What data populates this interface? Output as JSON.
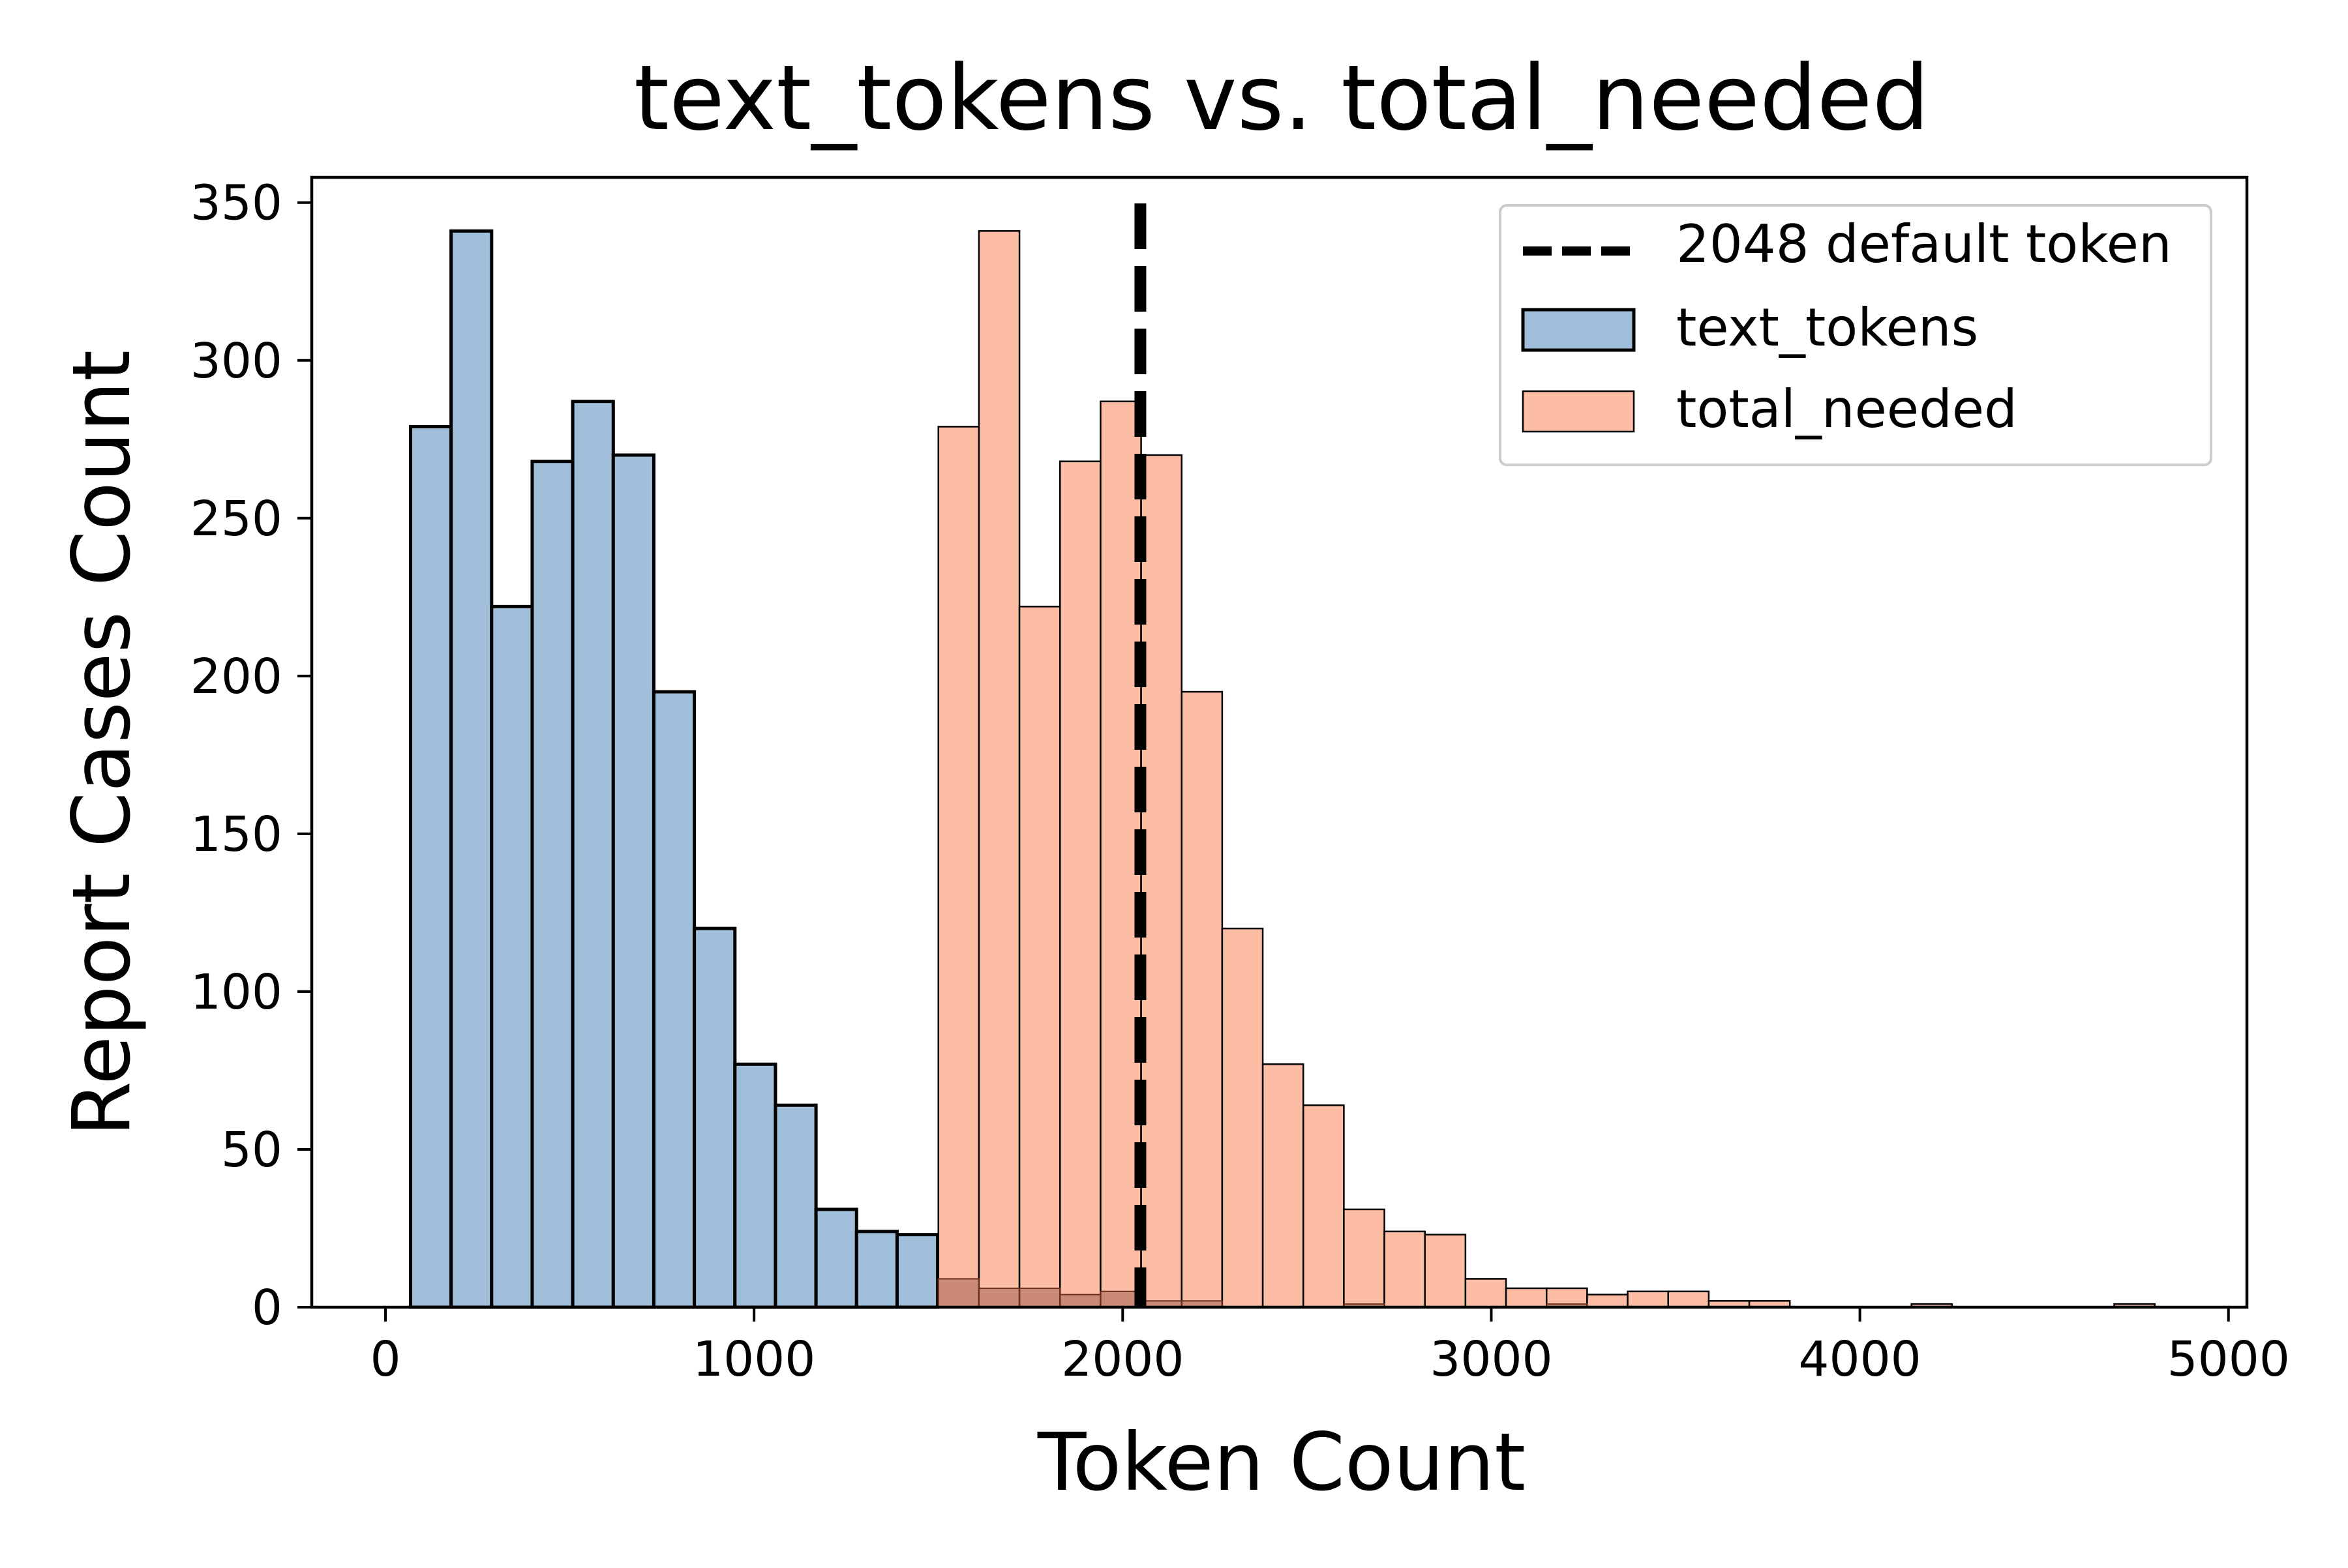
{
  "chart_data": {
    "type": "bar",
    "title": "text_tokens vs. total_needed",
    "xlabel": "Token Count",
    "ylabel": "Report Cases Count",
    "xlim": [
      -200,
      5050
    ],
    "ylim": [
      0,
      358
    ],
    "xticks": [
      0,
      1000,
      2000,
      3000,
      4000,
      5000
    ],
    "yticks": [
      0,
      50,
      100,
      150,
      200,
      250,
      300,
      350
    ],
    "grid": false,
    "legend_position": "top-right",
    "bin_width": 110,
    "series": [
      {
        "name": "text_tokens",
        "color": "#a1bfda",
        "edge_color": "#000000",
        "bin_starts": [
          68,
          178,
          288,
          398,
          508,
          618,
          728,
          838,
          948,
          1058,
          1168,
          1278,
          1388
        ],
        "values": [
          279,
          341,
          222,
          268,
          287,
          270,
          195,
          120,
          77,
          64,
          31,
          24,
          23
        ]
      },
      {
        "name": "total_needed",
        "color": "#fdbda5",
        "edge_color": "#000000",
        "bin_starts": [
          1500,
          1610,
          1720,
          1830,
          1940,
          2050,
          2160,
          2270,
          2380,
          2490,
          2600,
          2710,
          2820,
          2930,
          3040,
          3150,
          3260,
          3370,
          3480,
          3590,
          3700,
          3810,
          3920,
          4030,
          4140,
          4250,
          4360,
          4470,
          4580,
          4690
        ],
        "values": [
          279,
          341,
          222,
          268,
          287,
          270,
          195,
          120,
          77,
          64,
          31,
          24,
          23,
          9,
          6,
          6,
          4,
          5,
          5,
          2,
          2,
          0,
          0,
          0,
          1,
          0,
          0,
          0,
          0,
          1
        ]
      }
    ],
    "reference_line": {
      "x": 2048,
      "label": "2048 default token",
      "color": "#000000",
      "style": "dashed"
    },
    "overlap_color": "#a06050"
  }
}
